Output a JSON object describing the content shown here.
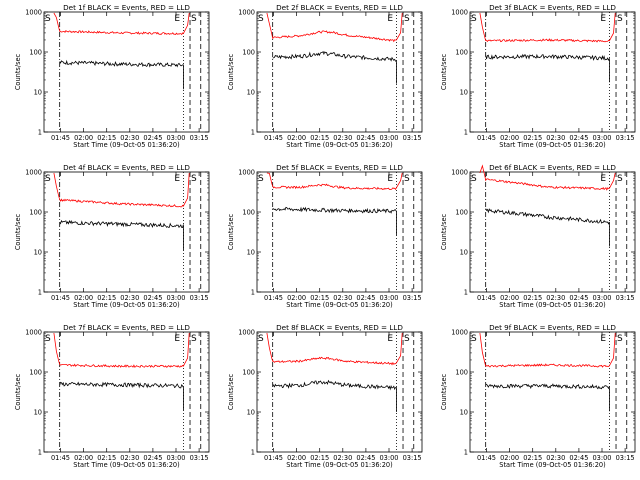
{
  "chart_data": [
    {
      "type": "line",
      "title": "Det 1f BLACK = Events, RED = LLD",
      "xlabel": "Start Time (09-Oct-05 01:36:20)",
      "ylabel": "Counts/sec",
      "y_scale": "log",
      "ylim": [
        1,
        1000
      ],
      "y_ticks": [
        "1",
        "10",
        "100",
        "1000"
      ],
      "x_ticks": [
        "01:45",
        "02:00",
        "02:15",
        "02:30",
        "02:45",
        "03:00",
        "03:15"
      ],
      "markers": [
        "S",
        "E",
        "S"
      ],
      "series": [
        {
          "color": "#ff0000",
          "level_start": 330,
          "level_mid": 300,
          "level_end": 290,
          "bump": 0
        },
        {
          "color": "#000000",
          "level_start": 55,
          "level_mid": 50,
          "level_end": 47,
          "bump": 0
        }
      ]
    },
    {
      "type": "line",
      "title": "Det 2f BLACK = Events, RED = LLD",
      "xlabel": "Start Time (09-Oct-05 01:36:20)",
      "ylabel": "Counts/sec",
      "y_scale": "log",
      "ylim": [
        1,
        1000
      ],
      "y_ticks": [
        "1",
        "10",
        "100",
        "1000"
      ],
      "x_ticks": [
        "01:45",
        "02:00",
        "02:15",
        "02:30",
        "02:45",
        "03:00",
        "03:15"
      ],
      "markers": [
        "S",
        "E",
        "S"
      ],
      "series": [
        {
          "color": "#ff0000",
          "level_start": 230,
          "level_mid": 280,
          "level_end": 190,
          "bump": 1
        },
        {
          "color": "#000000",
          "level_start": 75,
          "level_mid": 80,
          "level_end": 65,
          "bump": 1
        }
      ]
    },
    {
      "type": "line",
      "title": "Det 3f BLACK = Events, RED = LLD",
      "xlabel": "Start Time (09-Oct-05 01:36:20)",
      "ylabel": "Counts/sec",
      "y_scale": "log",
      "ylim": [
        1,
        1000
      ],
      "y_ticks": [
        "1",
        "10",
        "100",
        "1000"
      ],
      "x_ticks": [
        "01:45",
        "02:00",
        "02:15",
        "02:30",
        "02:45",
        "03:00",
        "03:15"
      ],
      "markers": [
        "S",
        "E",
        "S"
      ],
      "series": [
        {
          "color": "#ff0000",
          "level_start": 190,
          "level_mid": 200,
          "level_end": 185,
          "bump": 0
        },
        {
          "color": "#000000",
          "level_start": 75,
          "level_mid": 78,
          "level_end": 70,
          "bump": 0
        }
      ]
    },
    {
      "type": "line",
      "title": "Det 4f BLACK = Events, RED = LLD",
      "xlabel": "Start Time (09-Oct-05 01:36:20)",
      "ylabel": "Counts/sec",
      "y_scale": "log",
      "ylim": [
        1,
        1000
      ],
      "y_ticks": [
        "1",
        "10",
        "100",
        "1000"
      ],
      "x_ticks": [
        "01:45",
        "02:00",
        "02:15",
        "02:30",
        "02:45",
        "03:00",
        "03:15"
      ],
      "markers": [
        "S",
        "E",
        "S"
      ],
      "series": [
        {
          "color": "#ff0000",
          "level_start": 200,
          "level_mid": 160,
          "level_end": 140,
          "bump": 0
        },
        {
          "color": "#000000",
          "level_start": 55,
          "level_mid": 50,
          "level_end": 45,
          "bump": 0
        }
      ]
    },
    {
      "type": "line",
      "title": "Det 5f BLACK = Events, RED = LLD",
      "xlabel": "Start Time (09-Oct-05 01:36:20)",
      "ylabel": "Counts/sec",
      "y_scale": "log",
      "ylim": [
        1,
        1000
      ],
      "y_ticks": [
        "1",
        "10",
        "100",
        "1000"
      ],
      "x_ticks": [
        "01:45",
        "02:00",
        "02:15",
        "02:30",
        "02:45",
        "03:00",
        "03:15"
      ],
      "markers": [
        "S",
        "E",
        "S"
      ],
      "series": [
        {
          "color": "#ff0000",
          "level_start": 420,
          "level_mid": 400,
          "level_end": 380,
          "bump": 1
        },
        {
          "color": "#000000",
          "level_start": 120,
          "level_mid": 110,
          "level_end": 105,
          "bump": 0
        }
      ]
    },
    {
      "type": "line",
      "title": "Det 6f BLACK = Events, RED = LLD",
      "xlabel": "Start Time (09-Oct-05 01:36:20)",
      "ylabel": "Counts/sec",
      "y_scale": "log",
      "ylim": [
        1,
        1000
      ],
      "y_ticks": [
        "1",
        "10",
        "100",
        "1000"
      ],
      "x_ticks": [
        "01:45",
        "02:00",
        "02:15",
        "02:30",
        "02:45",
        "03:00",
        "03:15"
      ],
      "markers": [
        "S",
        "E",
        "S"
      ],
      "series": [
        {
          "color": "#ff0000",
          "level_start": 650,
          "level_mid": 420,
          "level_end": 380,
          "bump": 0
        },
        {
          "color": "#000000",
          "level_start": 110,
          "level_mid": 75,
          "level_end": 55,
          "bump": 0
        }
      ]
    },
    {
      "type": "line",
      "title": "Det 7f BLACK = Events, RED = LLD",
      "xlabel": "Start Time (09-Oct-05 01:36:20)",
      "ylabel": "Counts/sec",
      "y_scale": "log",
      "ylim": [
        1,
        1000
      ],
      "y_ticks": [
        "1",
        "10",
        "100",
        "1000"
      ],
      "x_ticks": [
        "01:45",
        "02:00",
        "02:15",
        "02:30",
        "02:45",
        "03:00",
        "03:15"
      ],
      "markers": [
        "S",
        "E",
        "S"
      ],
      "series": [
        {
          "color": "#ff0000",
          "level_start": 150,
          "level_mid": 140,
          "level_end": 140,
          "bump": 0
        },
        {
          "color": "#000000",
          "level_start": 50,
          "level_mid": 48,
          "level_end": 45,
          "bump": 0
        }
      ]
    },
    {
      "type": "line",
      "title": "Det 8f BLACK = Events, RED = LLD",
      "xlabel": "Start Time (09-Oct-05 01:36:20)",
      "ylabel": "Counts/sec",
      "y_scale": "log",
      "ylim": [
        1,
        1000
      ],
      "y_ticks": [
        "1",
        "10",
        "100",
        "1000"
      ],
      "x_ticks": [
        "01:45",
        "02:00",
        "02:15",
        "02:30",
        "02:45",
        "03:00",
        "03:15"
      ],
      "markers": [
        "S",
        "E",
        "S"
      ],
      "series": [
        {
          "color": "#ff0000",
          "level_start": 180,
          "level_mid": 190,
          "level_end": 160,
          "bump": 1
        },
        {
          "color": "#000000",
          "level_start": 45,
          "level_mid": 48,
          "level_end": 40,
          "bump": 1
        }
      ]
    },
    {
      "type": "line",
      "title": "Det 9f BLACK = Events, RED = LLD",
      "xlabel": "Start Time (09-Oct-05 01:36:20)",
      "ylabel": "Counts/sec",
      "y_scale": "log",
      "ylim": [
        1,
        1000
      ],
      "y_ticks": [
        "1",
        "10",
        "100",
        "1000"
      ],
      "x_ticks": [
        "01:45",
        "02:00",
        "02:15",
        "02:30",
        "02:45",
        "03:00",
        "03:15"
      ],
      "markers": [
        "S",
        "E",
        "S"
      ],
      "series": [
        {
          "color": "#ff0000",
          "level_start": 140,
          "level_mid": 150,
          "level_end": 140,
          "bump": 0
        },
        {
          "color": "#000000",
          "level_start": 45,
          "level_mid": 45,
          "level_end": 42,
          "bump": 0
        }
      ]
    }
  ]
}
